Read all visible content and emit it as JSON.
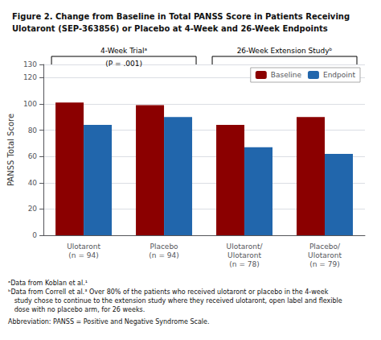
{
  "chart_data": {
    "type": "bar",
    "title": "Figure 2. Change from Baseline in Total PANSS Score in Patients Receiving\nUlotaront (SEP-363856) or Placebo at 4-Week and 26-Week Endpoints",
    "ylabel": "PANSS Total Score",
    "categories": [
      "Ulotaront\n(n = 94)",
      "Placebo\n(n = 94)",
      "Ulotaront/\nUlotaront\n(n = 78)",
      "Placebo/\nUlotaront\n(n = 79)"
    ],
    "series": [
      {
        "name": "Baseline",
        "color": "#8B0000",
        "values": [
          101,
          99,
          84,
          90
        ]
      },
      {
        "name": "Endpoint",
        "color": "#2166AC",
        "values": [
          84,
          90,
          67,
          62
        ]
      }
    ],
    "ylim": [
      0,
      130
    ],
    "yticks": [
      0,
      20,
      40,
      60,
      80,
      100,
      120
    ],
    "grid": true,
    "legend": "upper right",
    "annotations": [
      {
        "text": "4-Week Trialᵃ",
        "subtext": "(P = .001)",
        "span": [
          "Ulotaront\n(n = 94)",
          "Placebo\n(n = 94)"
        ]
      },
      {
        "text": "26-Week Extension Studyᵇ",
        "span": [
          "Ulotaront/\nUlotaront\n(n = 78)",
          "Placebo/\nUlotaront\n(n = 79)"
        ]
      }
    ],
    "footnotes": [
      "ᵃData from Koblan et al.¹",
      "ᵇData from Correll et al.³ Over 80% of the patients who received ulotaront or placebo in the 4-week",
      "   study chose to continue to the extension study where they received ulotaront, open label and flexible",
      "   dose with no placebo arm, for 26 weeks.",
      "Abbreviation: PANSS = Positive and Negative Syndrome Scale."
    ]
  }
}
